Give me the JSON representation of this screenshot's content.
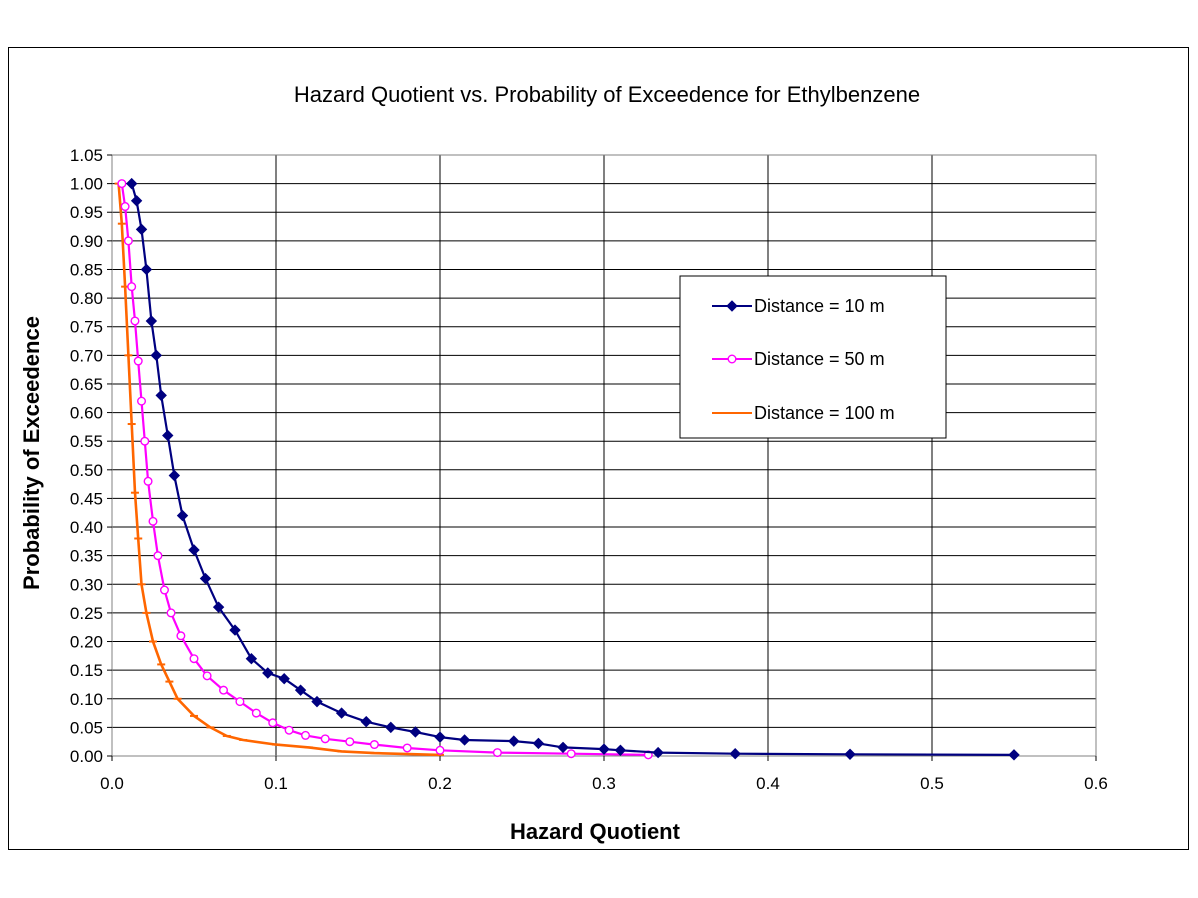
{
  "chart_data": {
    "type": "line",
    "title": "Hazard Quotient vs. Probability of Exceedence for Ethylbenzene",
    "xlabel": "Hazard Quotient",
    "ylabel": "Probability of Exceedence",
    "xlim": [
      0,
      0.6
    ],
    "ylim": [
      0,
      1.05
    ],
    "x_ticks": [
      "0.0",
      "0.1",
      "0.2",
      "0.3",
      "0.4",
      "0.5",
      "0.6"
    ],
    "y_ticks": [
      "0.00",
      "0.05",
      "0.10",
      "0.15",
      "0.20",
      "0.25",
      "0.30",
      "0.35",
      "0.40",
      "0.45",
      "0.50",
      "0.55",
      "0.60",
      "0.65",
      "0.70",
      "0.75",
      "0.80",
      "0.85",
      "0.90",
      "0.95",
      "1.00",
      "1.05"
    ],
    "grid": true,
    "legend_position": "right",
    "series": [
      {
        "name": "Distance = 10 m",
        "color": "#000080",
        "marker": "diamond",
        "points": [
          [
            0.012,
            1.0
          ],
          [
            0.015,
            0.97
          ],
          [
            0.018,
            0.92
          ],
          [
            0.021,
            0.85
          ],
          [
            0.024,
            0.76
          ],
          [
            0.027,
            0.7
          ],
          [
            0.03,
            0.63
          ],
          [
            0.034,
            0.56
          ],
          [
            0.038,
            0.49
          ],
          [
            0.043,
            0.42
          ],
          [
            0.05,
            0.36
          ],
          [
            0.057,
            0.31
          ],
          [
            0.065,
            0.26
          ],
          [
            0.075,
            0.22
          ],
          [
            0.085,
            0.17
          ],
          [
            0.095,
            0.145
          ],
          [
            0.105,
            0.135
          ],
          [
            0.115,
            0.115
          ],
          [
            0.125,
            0.095
          ],
          [
            0.14,
            0.075
          ],
          [
            0.155,
            0.06
          ],
          [
            0.17,
            0.05
          ],
          [
            0.185,
            0.042
          ],
          [
            0.2,
            0.033
          ],
          [
            0.215,
            0.028
          ],
          [
            0.245,
            0.026
          ],
          [
            0.26,
            0.022
          ],
          [
            0.275,
            0.015
          ],
          [
            0.3,
            0.012
          ],
          [
            0.31,
            0.01
          ],
          [
            0.333,
            0.006
          ],
          [
            0.38,
            0.004
          ],
          [
            0.45,
            0.003
          ],
          [
            0.55,
            0.002
          ]
        ]
      },
      {
        "name": "Distance = 50 m",
        "color": "#ff00ff",
        "marker": "circle",
        "points": [
          [
            0.006,
            1.0
          ],
          [
            0.008,
            0.96
          ],
          [
            0.01,
            0.9
          ],
          [
            0.012,
            0.82
          ],
          [
            0.014,
            0.76
          ],
          [
            0.016,
            0.69
          ],
          [
            0.018,
            0.62
          ],
          [
            0.02,
            0.55
          ],
          [
            0.022,
            0.48
          ],
          [
            0.025,
            0.41
          ],
          [
            0.028,
            0.35
          ],
          [
            0.032,
            0.29
          ],
          [
            0.036,
            0.25
          ],
          [
            0.042,
            0.21
          ],
          [
            0.05,
            0.17
          ],
          [
            0.058,
            0.14
          ],
          [
            0.068,
            0.115
          ],
          [
            0.078,
            0.095
          ],
          [
            0.088,
            0.075
          ],
          [
            0.098,
            0.058
          ],
          [
            0.108,
            0.045
          ],
          [
            0.118,
            0.036
          ],
          [
            0.13,
            0.03
          ],
          [
            0.145,
            0.025
          ],
          [
            0.16,
            0.02
          ],
          [
            0.18,
            0.014
          ],
          [
            0.2,
            0.01
          ],
          [
            0.235,
            0.006
          ],
          [
            0.28,
            0.004
          ],
          [
            0.327,
            0.002
          ]
        ]
      },
      {
        "name": "Distance = 100 m",
        "color": "#ff6600",
        "marker": "dash",
        "points": [
          [
            0.004,
            1.0
          ],
          [
            0.006,
            0.93
          ],
          [
            0.008,
            0.82
          ],
          [
            0.01,
            0.7
          ],
          [
            0.012,
            0.58
          ],
          [
            0.014,
            0.46
          ],
          [
            0.016,
            0.38
          ],
          [
            0.018,
            0.3
          ],
          [
            0.021,
            0.25
          ],
          [
            0.025,
            0.2
          ],
          [
            0.03,
            0.16
          ],
          [
            0.035,
            0.13
          ],
          [
            0.04,
            0.1
          ],
          [
            0.05,
            0.07
          ],
          [
            0.06,
            0.05
          ],
          [
            0.07,
            0.035
          ],
          [
            0.08,
            0.028
          ],
          [
            0.1,
            0.02
          ],
          [
            0.12,
            0.015
          ],
          [
            0.14,
            0.008
          ],
          [
            0.16,
            0.005
          ],
          [
            0.2,
            0.002
          ]
        ]
      }
    ]
  }
}
